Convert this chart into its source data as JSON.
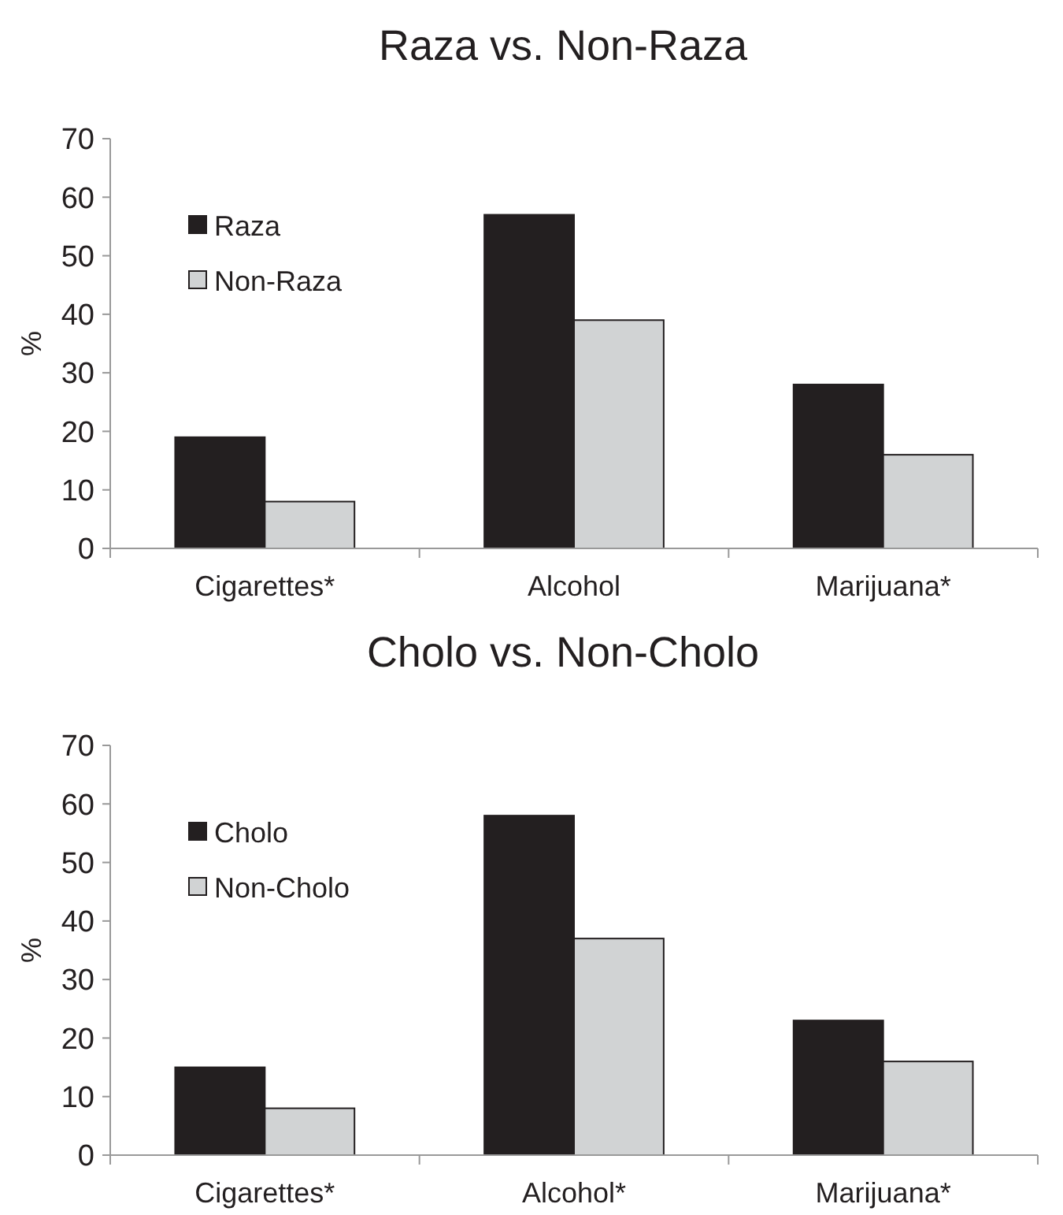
{
  "chart_data": [
    {
      "type": "bar",
      "title": "Raza vs. Non-Raza",
      "ylabel": "%",
      "categories": [
        "Cigarettes*",
        "Alcohol",
        "Marijuana*"
      ],
      "series": [
        {
          "name": "Raza",
          "color": "#231f20",
          "values": [
            19,
            57,
            28
          ]
        },
        {
          "name": "Non-Raza",
          "color": "#d1d3d4",
          "values": [
            8,
            39,
            16
          ]
        }
      ],
      "ylim": [
        0,
        70
      ],
      "yticks": [
        0,
        10,
        20,
        30,
        40,
        50,
        60,
        70
      ],
      "legend": "top left",
      "grid": false
    },
    {
      "type": "bar",
      "title": "Cholo vs. Non-Cholo",
      "ylabel": "%",
      "categories": [
        "Cigarettes*",
        "Alcohol*",
        "Marijuana*"
      ],
      "series": [
        {
          "name": "Cholo",
          "color": "#231f20",
          "values": [
            15,
            58,
            23
          ]
        },
        {
          "name": "Non-Cholo",
          "color": "#d1d3d4",
          "values": [
            8,
            37,
            16
          ]
        }
      ],
      "ylim": [
        0,
        70
      ],
      "yticks": [
        0,
        10,
        20,
        30,
        40,
        50,
        60,
        70
      ],
      "legend": "top left",
      "grid": false
    }
  ]
}
